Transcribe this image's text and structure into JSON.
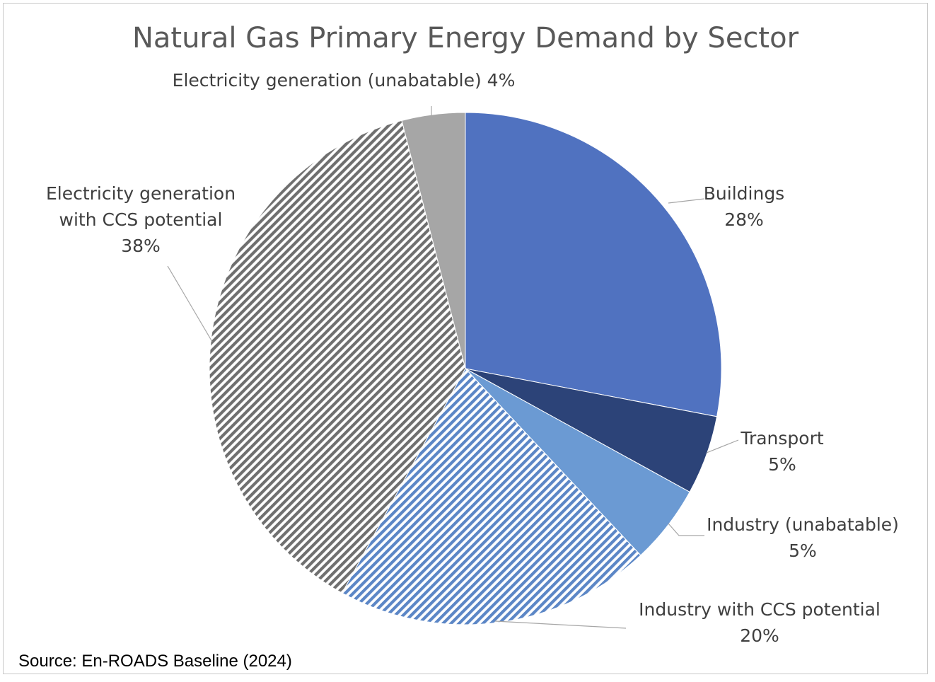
{
  "chart_data": {
    "type": "pie",
    "title": "Natural Gas Primary Energy Demand by Sector",
    "source": "Source: En-ROADS Baseline (2024)",
    "slices": [
      {
        "name": "Buildings",
        "label_lines": [
          "Buildings",
          "28%"
        ],
        "value": 28,
        "color": "#5072c0",
        "pattern": "solid"
      },
      {
        "name": "Transport",
        "label_lines": [
          "Transport",
          "5%"
        ],
        "value": 5,
        "color": "#2c4378",
        "pattern": "solid"
      },
      {
        "name": "Industry (unabatable)",
        "label_lines": [
          "Industry (unabatable)",
          "5%"
        ],
        "value": 5,
        "color": "#6b9ad3",
        "pattern": "solid"
      },
      {
        "name": "Industry with CCS potential",
        "label_lines": [
          "Industry with CCS potential",
          "20%"
        ],
        "value": 20,
        "color": "#5b86c6",
        "pattern": "stripes"
      },
      {
        "name": "Electricity generation with CCS potential",
        "label_lines": [
          "Electricity generation",
          "with CCS potential",
          "38%"
        ],
        "value": 38,
        "color": "#6f6f6f",
        "pattern": "stripes"
      },
      {
        "name": "Electricity generation (unabatable)",
        "label_lines": [
          "Electricity generation (unabatable) 4%"
        ],
        "value": 4,
        "color": "#a6a6a6",
        "pattern": "solid"
      }
    ]
  }
}
